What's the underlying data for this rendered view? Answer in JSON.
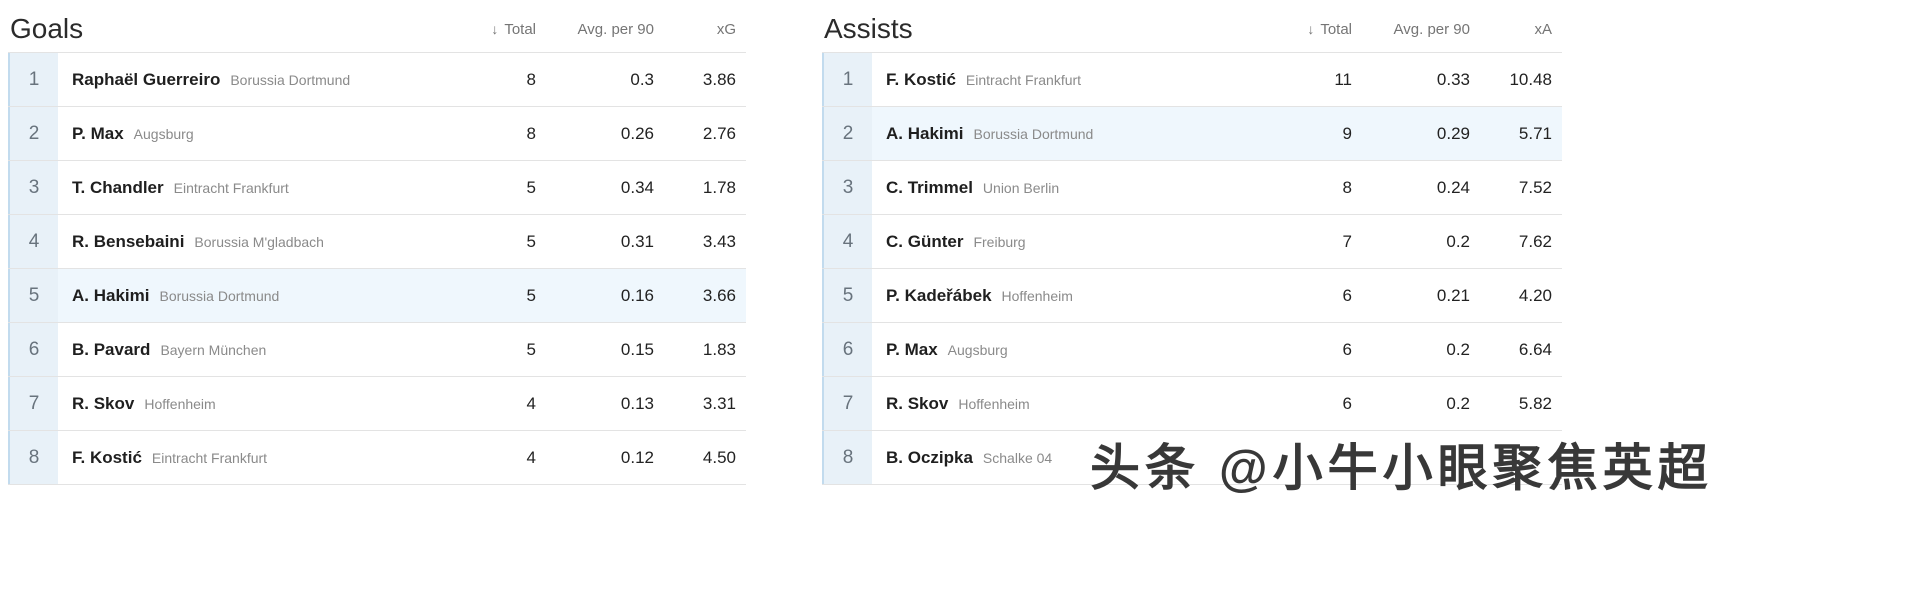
{
  "sort_arrow": "↓",
  "watermark": "头条 @小牛小眼聚焦英超",
  "tables": [
    {
      "title": "Goals",
      "columns": {
        "total": "Total",
        "avg": "Avg. per 90",
        "metric": "xG"
      },
      "rows": [
        {
          "rank": "1",
          "player": "Raphaël Guerreiro",
          "team": "Borussia Dortmund",
          "total": "8",
          "avg": "0.3",
          "metric": "3.86",
          "highlight": false
        },
        {
          "rank": "2",
          "player": "P. Max",
          "team": "Augsburg",
          "total": "8",
          "avg": "0.26",
          "metric": "2.76",
          "highlight": false
        },
        {
          "rank": "3",
          "player": "T. Chandler",
          "team": "Eintracht Frankfurt",
          "total": "5",
          "avg": "0.34",
          "metric": "1.78",
          "highlight": false
        },
        {
          "rank": "4",
          "player": "R. Bensebaini",
          "team": "Borussia M'gladbach",
          "total": "5",
          "avg": "0.31",
          "metric": "3.43",
          "highlight": false
        },
        {
          "rank": "5",
          "player": "A. Hakimi",
          "team": "Borussia Dortmund",
          "total": "5",
          "avg": "0.16",
          "metric": "3.66",
          "highlight": true
        },
        {
          "rank": "6",
          "player": "B. Pavard",
          "team": "Bayern München",
          "total": "5",
          "avg": "0.15",
          "metric": "1.83",
          "highlight": false
        },
        {
          "rank": "7",
          "player": "R. Skov",
          "team": "Hoffenheim",
          "total": "4",
          "avg": "0.13",
          "metric": "3.31",
          "highlight": false
        },
        {
          "rank": "8",
          "player": "F. Kostić",
          "team": "Eintracht Frankfurt",
          "total": "4",
          "avg": "0.12",
          "metric": "4.50",
          "highlight": false
        }
      ]
    },
    {
      "title": "Assists",
      "columns": {
        "total": "Total",
        "avg": "Avg. per 90",
        "metric": "xA"
      },
      "rows": [
        {
          "rank": "1",
          "player": "F. Kostić",
          "team": "Eintracht Frankfurt",
          "total": "11",
          "avg": "0.33",
          "metric": "10.48",
          "highlight": false
        },
        {
          "rank": "2",
          "player": "A. Hakimi",
          "team": "Borussia Dortmund",
          "total": "9",
          "avg": "0.29",
          "metric": "5.71",
          "highlight": true
        },
        {
          "rank": "3",
          "player": "C. Trimmel",
          "team": "Union Berlin",
          "total": "8",
          "avg": "0.24",
          "metric": "7.52",
          "highlight": false
        },
        {
          "rank": "4",
          "player": "C. Günter",
          "team": "Freiburg",
          "total": "7",
          "avg": "0.2",
          "metric": "7.62",
          "highlight": false
        },
        {
          "rank": "5",
          "player": "P. Kadeřábek",
          "team": "Hoffenheim",
          "total": "6",
          "avg": "0.21",
          "metric": "4.20",
          "highlight": false
        },
        {
          "rank": "6",
          "player": "P. Max",
          "team": "Augsburg",
          "total": "6",
          "avg": "0.2",
          "metric": "6.64",
          "highlight": false
        },
        {
          "rank": "7",
          "player": "R. Skov",
          "team": "Hoffenheim",
          "total": "6",
          "avg": "0.2",
          "metric": "5.82",
          "highlight": false
        },
        {
          "rank": "8",
          "player": "B. Oczipka",
          "team": "Schalke 04",
          "total": "",
          "avg": "",
          "metric": "",
          "highlight": false
        }
      ]
    }
  ]
}
